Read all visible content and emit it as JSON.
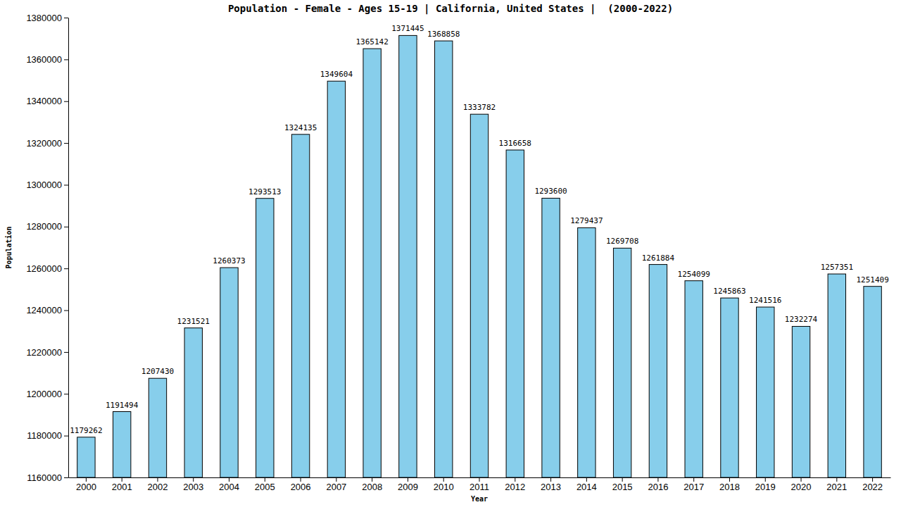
{
  "chart_data": {
    "type": "bar",
    "title": "Population - Female - Ages 15-19 | California, United States |  (2000-2022)",
    "x_label": "Year",
    "y_label": "Population",
    "categories": [
      "2000",
      "2001",
      "2002",
      "2003",
      "2004",
      "2005",
      "2006",
      "2007",
      "2008",
      "2009",
      "2010",
      "2011",
      "2012",
      "2013",
      "2014",
      "2015",
      "2016",
      "2017",
      "2018",
      "2019",
      "2020",
      "2021",
      "2022"
    ],
    "values": [
      1179262,
      1191494,
      1207430,
      1231521,
      1260373,
      1293513,
      1324135,
      1349604,
      1365142,
      1371445,
      1368858,
      1333782,
      1316658,
      1293600,
      1279437,
      1269708,
      1261884,
      1254099,
      1245863,
      1241516,
      1232274,
      1257351,
      1251409
    ],
    "color": "#87ceeb",
    "ylim": [
      1160000,
      1380000
    ],
    "yticks": [
      1160000,
      1180000,
      1200000,
      1220000,
      1240000,
      1260000,
      1280000,
      1300000,
      1320000,
      1340000,
      1360000,
      1380000
    ],
    "grid": false,
    "data_labels": true
  }
}
